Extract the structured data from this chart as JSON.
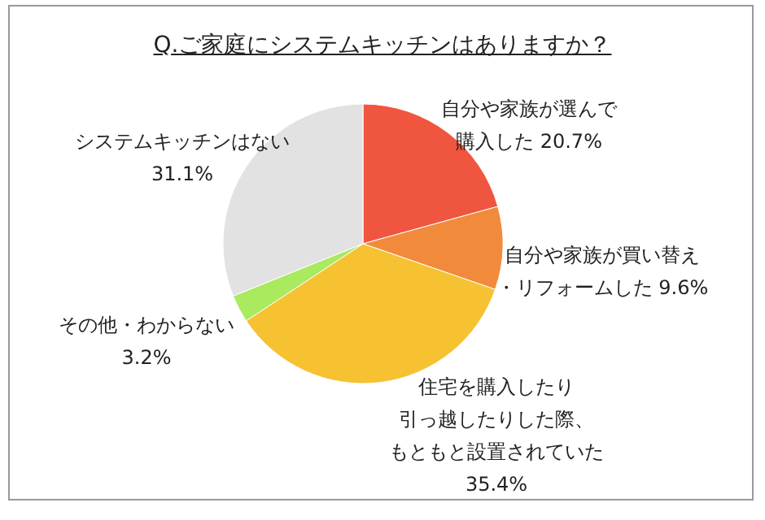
{
  "chart_data": {
    "type": "pie",
    "title": "Q.ご家庭にシステムキッチンはありますか？",
    "categories": [
      "自分や家族が選んで購入した",
      "自分や家族が買い替え・リフォームした",
      "住宅を購入したり引っ越したりした際、もともと設置されていた",
      "その他・わからない",
      "システムキッチンはない"
    ],
    "values": [
      20.7,
      9.6,
      35.4,
      3.2,
      31.1
    ],
    "value_labels": [
      "20.7%",
      "9.6%",
      "35.4%",
      "3.2%",
      "31.1%"
    ],
    "colors": [
      "#f0553f",
      "#f28a3c",
      "#f6c232",
      "#a9ea5e",
      "#e2e2e2"
    ],
    "legend": false
  }
}
